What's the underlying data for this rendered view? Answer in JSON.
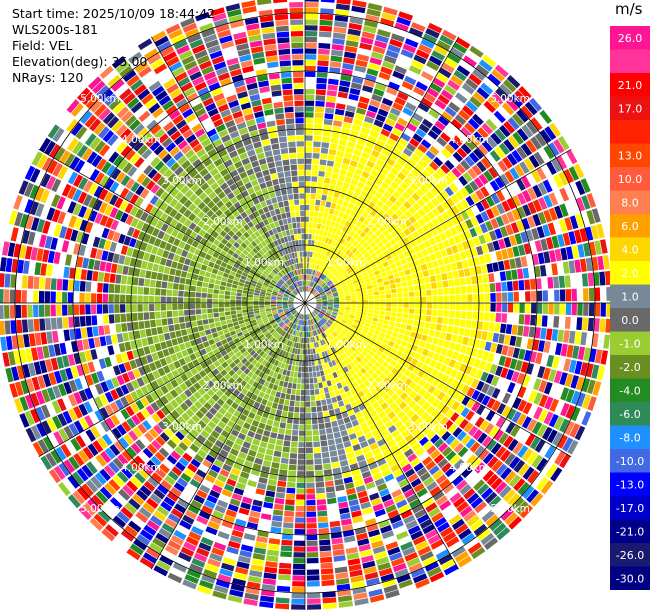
{
  "header": {
    "start_time": "Start time: 2025/10/09 18:44:42",
    "instrument": "WLS200s-181",
    "field": "Field: VEL",
    "elevation": "Elevation(deg): 35.00",
    "nrays": "NRays: 120"
  },
  "colorbar": {
    "unit": "m/s",
    "entries": [
      {
        "label": "26.0",
        "color": "#ff1493"
      },
      {
        "label": "",
        "color": "#ff3399"
      },
      {
        "label": "21.0",
        "color": "#ff0000"
      },
      {
        "label": "17.0",
        "color": "#ee1111"
      },
      {
        "label": "",
        "color": "#ff2200"
      },
      {
        "label": "13.0",
        "color": "#ff4500"
      },
      {
        "label": "10.0",
        "color": "#ff5a3c"
      },
      {
        "label": "8.0",
        "color": "#ff7f50"
      },
      {
        "label": "6.0",
        "color": "#ffa000"
      },
      {
        "label": "4.0",
        "color": "#ffd700"
      },
      {
        "label": "2.0",
        "color": "#ffff00"
      },
      {
        "label": "1.0",
        "color": "#778899"
      },
      {
        "label": "0.0",
        "color": "#696969"
      },
      {
        "label": "-1.0",
        "color": "#9acd32"
      },
      {
        "label": "-2.0",
        "color": "#6b8e23"
      },
      {
        "label": "-4.0",
        "color": "#228b22"
      },
      {
        "label": "-6.0",
        "color": "#2e8b57"
      },
      {
        "label": "-8.0",
        "color": "#1e90ff"
      },
      {
        "label": "-10.0",
        "color": "#4169e1"
      },
      {
        "label": "-13.0",
        "color": "#0000ff"
      },
      {
        "label": "-17.0",
        "color": "#0000cd"
      },
      {
        "label": "-21.0",
        "color": "#00008b"
      },
      {
        "label": "-26.0",
        "color": "#191970"
      },
      {
        "label": "-30.0",
        "color": "#000080"
      }
    ]
  },
  "chart_data": {
    "type": "heatmap",
    "projection": "polar PPI (plan position indicator)",
    "field": "VEL",
    "units": "m/s",
    "elevation_deg": 35.0,
    "n_rays": 120,
    "range_rings_km": [
      1.0,
      2.0,
      3.0,
      4.0,
      5.0
    ],
    "ring_labels": {
      "1": "1.00km",
      "2": "2.00km",
      "3": "3.00km",
      "4": "4.00km",
      "5": "5.00km"
    },
    "max_range_km": 5.3,
    "azimuth_spokes_deg": [
      0,
      30,
      60,
      90,
      120,
      150,
      180,
      210,
      240,
      270,
      300,
      330
    ],
    "velocity_structure": {
      "description": "Inner ~1.2-3.2 km: positive (yellow) velocities to north/east (azimuth ~10-150 deg), negative (green) to west/south (azimuth ~180-350 deg), grey near-zero transition band. Beyond ~3.2 km: noisy multicolored returns.",
      "positive_sector_deg": [
        10,
        150
      ],
      "negative_sector_deg": [
        180,
        350
      ],
      "coherent_range_km": [
        0.15,
        3.2
      ]
    }
  }
}
